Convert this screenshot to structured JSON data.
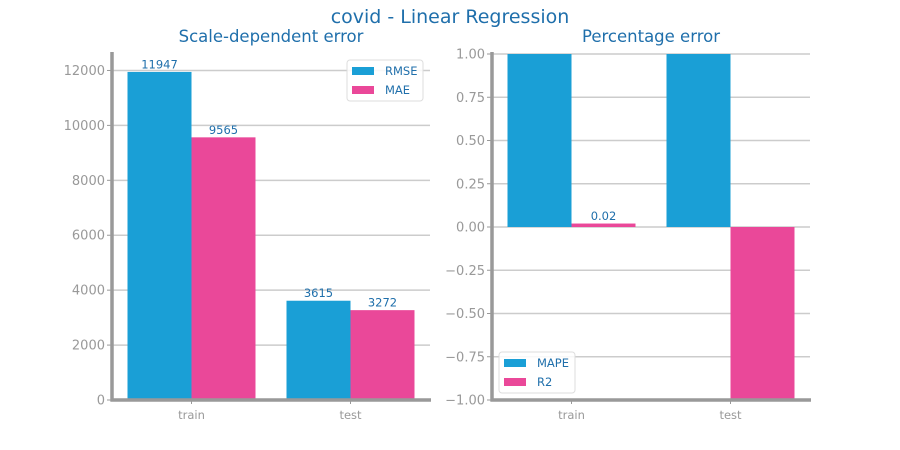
{
  "figure": {
    "title": "covid - Linear Regression"
  },
  "colors": {
    "blue": "#1a9fd6",
    "pink": "#ea4899",
    "title": "#1f6fab",
    "axis": "#999999",
    "grid": "#cccccc",
    "tick_label": "#999999",
    "value_label": "#1f6fab"
  },
  "chart_data": [
    {
      "type": "bar",
      "title": "Scale-dependent error",
      "categories": [
        "train",
        "test"
      ],
      "series": [
        {
          "name": "RMSE",
          "values": [
            11947,
            3615
          ],
          "labels": [
            "11947",
            "3615"
          ]
        },
        {
          "name": "MAE",
          "values": [
            9565,
            3272
          ],
          "labels": [
            "9565",
            "3272"
          ]
        }
      ],
      "ylim": [
        0,
        12600
      ],
      "yticks": [
        0,
        2000,
        4000,
        6000,
        8000,
        10000,
        12000
      ],
      "ytick_labels": [
        "0",
        "2000",
        "4000",
        "6000",
        "8000",
        "10000",
        "12000"
      ],
      "grid": "horizontal",
      "legend": "top-right",
      "xlabel": "",
      "ylabel": ""
    },
    {
      "type": "bar",
      "title": "Percentage error",
      "categories": [
        "train",
        "test"
      ],
      "series": [
        {
          "name": "MAPE",
          "values": [
            1.0,
            1.0
          ],
          "labels": [
            "",
            ""
          ]
        },
        {
          "name": "R2",
          "values": [
            0.02,
            -1.0
          ],
          "labels": [
            "0.02",
            ""
          ]
        }
      ],
      "ylim": [
        -1.0,
        1.0
      ],
      "yticks": [
        -1.0,
        -0.75,
        -0.5,
        -0.25,
        0.0,
        0.25,
        0.5,
        0.75,
        1.0
      ],
      "ytick_labels": [
        "−1.00",
        "−0.75",
        "−0.50",
        "−0.25",
        "0.00",
        "0.25",
        "0.50",
        "0.75",
        "1.00"
      ],
      "grid": "horizontal",
      "legend": "bottom-left",
      "xlabel": "",
      "ylabel": ""
    }
  ]
}
